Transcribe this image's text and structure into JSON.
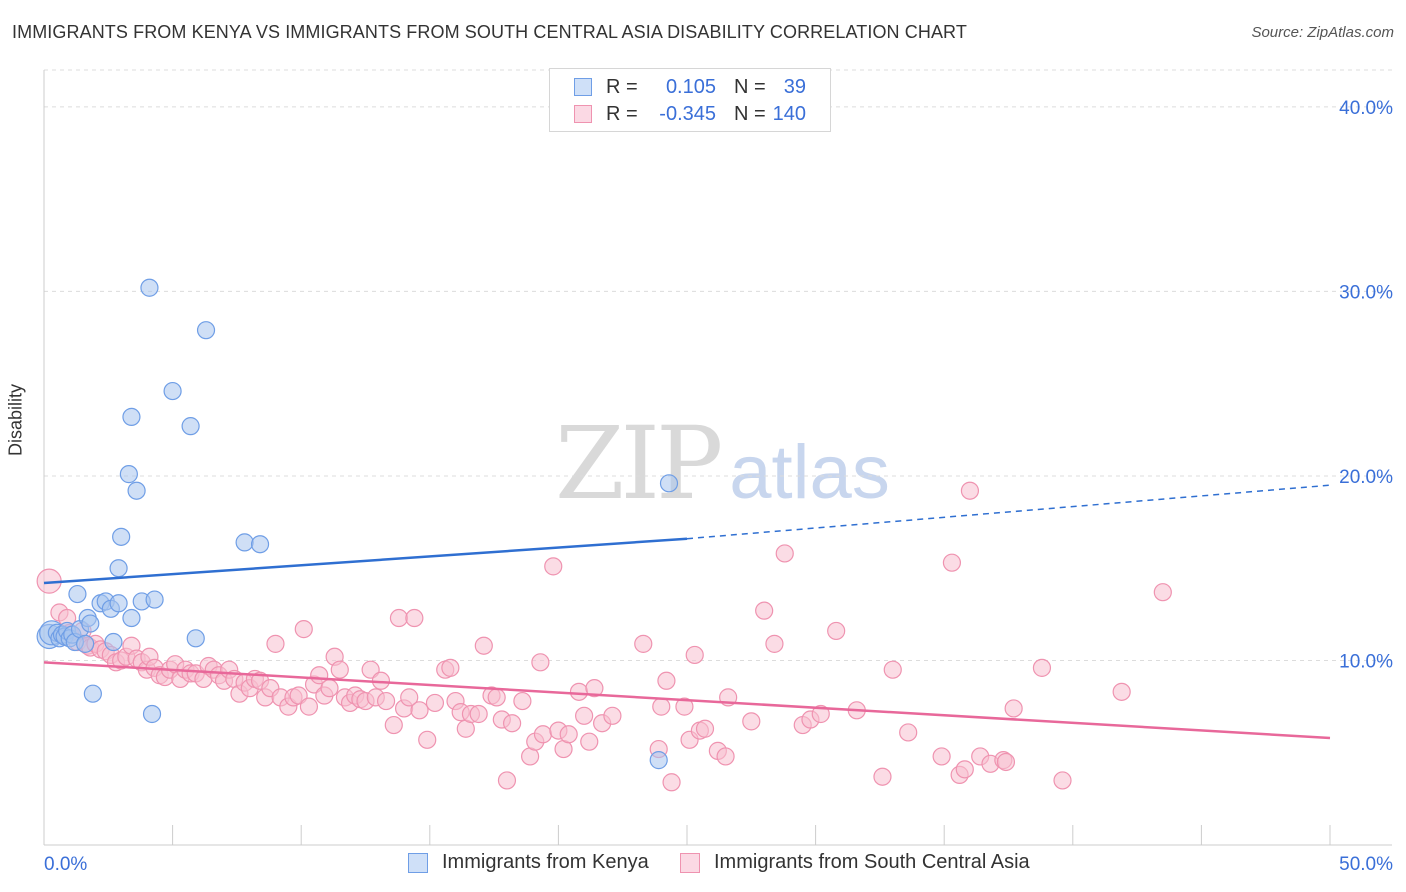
{
  "title": "IMMIGRANTS FROM KENYA VS IMMIGRANTS FROM SOUTH CENTRAL ASIA DISABILITY CORRELATION CHART",
  "source": "Source: ZipAtlas.com",
  "watermark": {
    "zip": "ZIP",
    "atlas": "atlas"
  },
  "legend": {
    "rows": [
      {
        "r_label": "R =",
        "r_value": "0.105",
        "n_label": "N =",
        "n_value": "39",
        "color": "#a8c4ef",
        "border": "#6f9ee6"
      },
      {
        "r_label": "R =",
        "r_value": "-0.345",
        "n_label": "N =",
        "n_value": "140",
        "color": "#f7bfd0",
        "border": "#ef93b0"
      }
    ]
  },
  "chart_data": {
    "type": "scatter",
    "title": "IMMIGRANTS FROM KENYA VS IMMIGRANTS FROM SOUTH CENTRAL ASIA DISABILITY CORRELATION CHART",
    "xlabel": "",
    "ylabel": "Disability",
    "xlim": [
      0,
      50
    ],
    "ylim": [
      0,
      42
    ],
    "x_tick_labels": [
      "0.0%",
      "50.0%"
    ],
    "y_ticks": [
      10,
      20,
      30,
      40
    ],
    "y_tick_labels": [
      "10.0%",
      "20.0%",
      "30.0%",
      "40.0%"
    ],
    "grid": true,
    "series": [
      {
        "name": "Immigrants from Kenya",
        "color": "#a8c4ef",
        "stroke": "#6f9ee6",
        "line_color": "#2f6fd1",
        "trend": {
          "x0": 0,
          "y0": 14.2,
          "x1": 25,
          "y1": 16.6,
          "dash_to_x": 50,
          "dash_to_y": 19.5
        },
        "points": [
          [
            0.2,
            11.3
          ],
          [
            0.3,
            11.5
          ],
          [
            0.5,
            11.5
          ],
          [
            0.6,
            11.2
          ],
          [
            0.7,
            11.4
          ],
          [
            0.8,
            11.3
          ],
          [
            0.9,
            11.6
          ],
          [
            1.0,
            11.2
          ],
          [
            1.1,
            11.4
          ],
          [
            1.2,
            11.0
          ],
          [
            1.3,
            13.6
          ],
          [
            1.4,
            11.7
          ],
          [
            1.6,
            10.9
          ],
          [
            1.7,
            12.3
          ],
          [
            1.8,
            12.0
          ],
          [
            1.9,
            8.2
          ],
          [
            2.2,
            13.1
          ],
          [
            2.4,
            13.2
          ],
          [
            2.6,
            12.8
          ],
          [
            2.7,
            11.0
          ],
          [
            2.9,
            13.1
          ],
          [
            3.0,
            16.7
          ],
          [
            2.9,
            15.0
          ],
          [
            3.4,
            12.3
          ],
          [
            3.4,
            23.2
          ],
          [
            3.3,
            20.1
          ],
          [
            3.6,
            19.2
          ],
          [
            3.8,
            13.2
          ],
          [
            4.1,
            30.2
          ],
          [
            4.2,
            7.1
          ],
          [
            4.3,
            13.3
          ],
          [
            5.0,
            24.6
          ],
          [
            5.7,
            22.7
          ],
          [
            5.9,
            11.2
          ],
          [
            6.3,
            27.9
          ],
          [
            7.8,
            16.4
          ],
          [
            8.4,
            16.3
          ],
          [
            23.9,
            4.6
          ],
          [
            24.3,
            19.6
          ]
        ]
      },
      {
        "name": "Immigrants from South Central Asia",
        "color": "#f7bfd0",
        "stroke": "#ef93b0",
        "line_color": "#e8689a",
        "trend": {
          "x0": 0,
          "y0": 9.9,
          "x1": 50,
          "y1": 5.8
        },
        "points": [
          [
            0.2,
            14.3
          ],
          [
            0.6,
            12.6
          ],
          [
            0.9,
            12.3
          ],
          [
            1.0,
            11.5
          ],
          [
            1.3,
            11.0
          ],
          [
            1.5,
            11.6
          ],
          [
            1.7,
            10.8
          ],
          [
            1.8,
            10.7
          ],
          [
            2.0,
            10.9
          ],
          [
            2.2,
            10.6
          ],
          [
            2.4,
            10.5
          ],
          [
            2.6,
            10.3
          ],
          [
            2.8,
            9.9
          ],
          [
            3.0,
            10.0
          ],
          [
            3.2,
            10.2
          ],
          [
            3.4,
            10.8
          ],
          [
            3.6,
            10.1
          ],
          [
            3.8,
            9.9
          ],
          [
            4.0,
            9.5
          ],
          [
            4.1,
            10.2
          ],
          [
            4.3,
            9.6
          ],
          [
            4.5,
            9.2
          ],
          [
            4.7,
            9.1
          ],
          [
            4.9,
            9.5
          ],
          [
            5.1,
            9.8
          ],
          [
            5.3,
            9.0
          ],
          [
            5.5,
            9.5
          ],
          [
            5.7,
            9.3
          ],
          [
            5.9,
            9.3
          ],
          [
            6.2,
            9.0
          ],
          [
            6.4,
            9.7
          ],
          [
            6.6,
            9.5
          ],
          [
            6.8,
            9.2
          ],
          [
            7.0,
            8.9
          ],
          [
            7.2,
            9.5
          ],
          [
            7.4,
            9.0
          ],
          [
            7.6,
            8.2
          ],
          [
            7.8,
            8.8
          ],
          [
            8.0,
            8.5
          ],
          [
            8.2,
            9.0
          ],
          [
            8.4,
            8.9
          ],
          [
            8.6,
            8.0
          ],
          [
            8.8,
            8.5
          ],
          [
            9.0,
            10.9
          ],
          [
            9.2,
            8.0
          ],
          [
            9.5,
            7.5
          ],
          [
            9.7,
            8.0
          ],
          [
            9.9,
            8.1
          ],
          [
            10.1,
            11.7
          ],
          [
            10.3,
            7.5
          ],
          [
            10.5,
            8.7
          ],
          [
            10.7,
            9.2
          ],
          [
            10.9,
            8.1
          ],
          [
            11.1,
            8.5
          ],
          [
            11.3,
            10.2
          ],
          [
            11.5,
            9.5
          ],
          [
            11.7,
            8.0
          ],
          [
            11.9,
            7.7
          ],
          [
            12.1,
            8.1
          ],
          [
            12.3,
            7.9
          ],
          [
            12.5,
            7.8
          ],
          [
            12.7,
            9.5
          ],
          [
            12.9,
            8.0
          ],
          [
            13.1,
            8.9
          ],
          [
            13.3,
            7.8
          ],
          [
            13.6,
            6.5
          ],
          [
            13.8,
            12.3
          ],
          [
            14.0,
            7.4
          ],
          [
            14.2,
            8.0
          ],
          [
            14.4,
            12.3
          ],
          [
            14.6,
            7.3
          ],
          [
            14.9,
            5.7
          ],
          [
            15.2,
            7.7
          ],
          [
            15.6,
            9.5
          ],
          [
            15.8,
            9.6
          ],
          [
            16.0,
            7.8
          ],
          [
            16.2,
            7.2
          ],
          [
            16.4,
            6.3
          ],
          [
            16.6,
            7.1
          ],
          [
            16.9,
            7.1
          ],
          [
            17.1,
            10.8
          ],
          [
            17.4,
            8.1
          ],
          [
            17.6,
            8.0
          ],
          [
            17.8,
            6.8
          ],
          [
            18.0,
            3.5
          ],
          [
            18.2,
            6.6
          ],
          [
            18.6,
            7.8
          ],
          [
            18.9,
            4.8
          ],
          [
            19.1,
            5.6
          ],
          [
            19.3,
            9.9
          ],
          [
            19.4,
            6.0
          ],
          [
            19.8,
            15.1
          ],
          [
            20.0,
            6.2
          ],
          [
            20.2,
            5.2
          ],
          [
            20.4,
            6.0
          ],
          [
            20.8,
            8.3
          ],
          [
            21.0,
            7.0
          ],
          [
            21.2,
            5.6
          ],
          [
            21.4,
            8.5
          ],
          [
            21.7,
            6.6
          ],
          [
            22.1,
            7.0
          ],
          [
            23.3,
            10.9
          ],
          [
            23.9,
            5.2
          ],
          [
            24.0,
            7.5
          ],
          [
            24.2,
            8.9
          ],
          [
            24.4,
            3.4
          ],
          [
            24.9,
            7.5
          ],
          [
            25.1,
            5.7
          ],
          [
            25.3,
            10.3
          ],
          [
            25.5,
            6.2
          ],
          [
            25.7,
            6.3
          ],
          [
            26.2,
            5.1
          ],
          [
            26.5,
            4.8
          ],
          [
            26.6,
            8.0
          ],
          [
            27.5,
            6.7
          ],
          [
            28.0,
            12.7
          ],
          [
            28.4,
            10.9
          ],
          [
            28.8,
            15.8
          ],
          [
            29.5,
            6.5
          ],
          [
            29.8,
            6.8
          ],
          [
            30.2,
            7.1
          ],
          [
            30.8,
            11.6
          ],
          [
            31.6,
            7.3
          ],
          [
            32.6,
            3.7
          ],
          [
            33.0,
            9.5
          ],
          [
            33.6,
            6.1
          ],
          [
            34.9,
            4.8
          ],
          [
            35.3,
            15.3
          ],
          [
            35.6,
            3.8
          ],
          [
            35.8,
            4.1
          ],
          [
            36.0,
            19.2
          ],
          [
            36.4,
            4.8
          ],
          [
            36.8,
            4.4
          ],
          [
            37.3,
            4.6
          ],
          [
            37.4,
            4.5
          ],
          [
            37.7,
            7.4
          ],
          [
            38.8,
            9.6
          ],
          [
            39.6,
            3.5
          ],
          [
            41.9,
            8.3
          ],
          [
            43.5,
            13.7
          ]
        ]
      }
    ]
  }
}
